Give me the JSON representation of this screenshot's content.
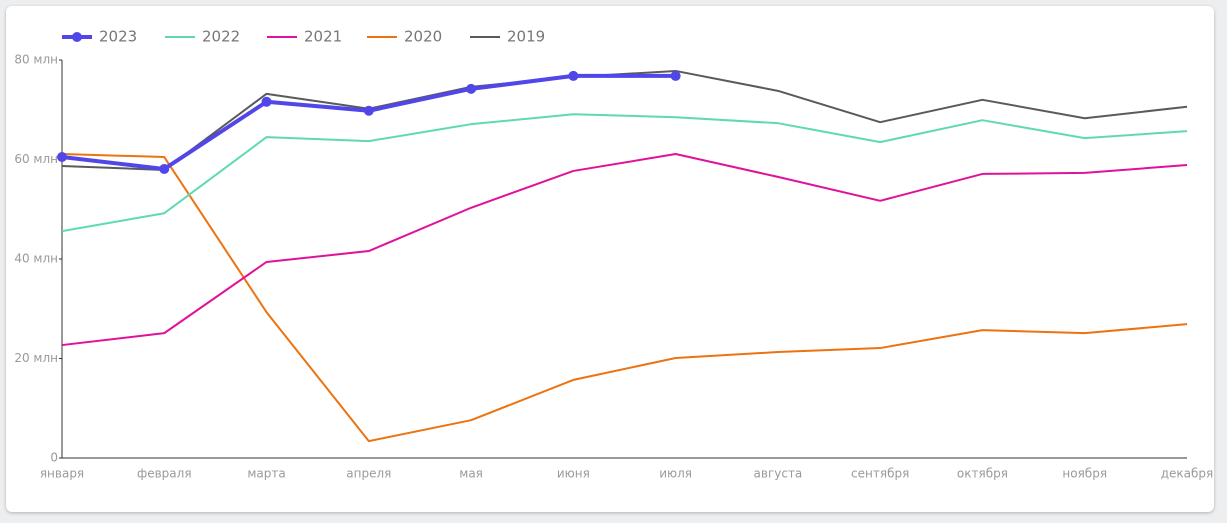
{
  "chart_data": {
    "type": "line",
    "categories": [
      "января",
      "февраля",
      "марта",
      "апреля",
      "мая",
      "июня",
      "июля",
      "августа",
      "сентября",
      "октября",
      "ноября",
      "декабря"
    ],
    "series": [
      {
        "name": "2023",
        "color": "#5146e8",
        "values": [
          60.5,
          58.1,
          71.6,
          69.8,
          74.2,
          76.8,
          76.8,
          null,
          null,
          null,
          null,
          null
        ]
      },
      {
        "name": "2022",
        "color": "#5fd9b5",
        "values": [
          45.6,
          49.2,
          64.5,
          63.7,
          67.1,
          69.1,
          68.5,
          67.3,
          63.5,
          67.9,
          64.3,
          65.7
        ]
      },
      {
        "name": "2021",
        "color": "#e0119a",
        "values": [
          22.7,
          25.1,
          39.4,
          41.6,
          50.3,
          57.7,
          61.1,
          56.5,
          51.7,
          57.1,
          57.3,
          58.9
        ]
      },
      {
        "name": "2020",
        "color": "#ec7310",
        "values": [
          61.1,
          60.5,
          29.3,
          3.4,
          7.6,
          15.7,
          20.1,
          21.3,
          22.1,
          25.7,
          25.1,
          26.9
        ]
      },
      {
        "name": "2019",
        "color": "#5a5a5a",
        "values": [
          58.7,
          57.9,
          73.2,
          70.2,
          74.6,
          76.6,
          77.8,
          73.8,
          67.5,
          72.0,
          68.3,
          70.6
        ]
      }
    ],
    "ylim": [
      0,
      80
    ],
    "yticks": [
      0,
      {
        "value": 20,
        "label": "20 млн"
      },
      {
        "value": 40,
        "label": "40 млн"
      },
      {
        "value": 60,
        "label": "60 млн"
      },
      {
        "value": 80,
        "label": "80 млн"
      }
    ],
    "legend": "top-left"
  }
}
